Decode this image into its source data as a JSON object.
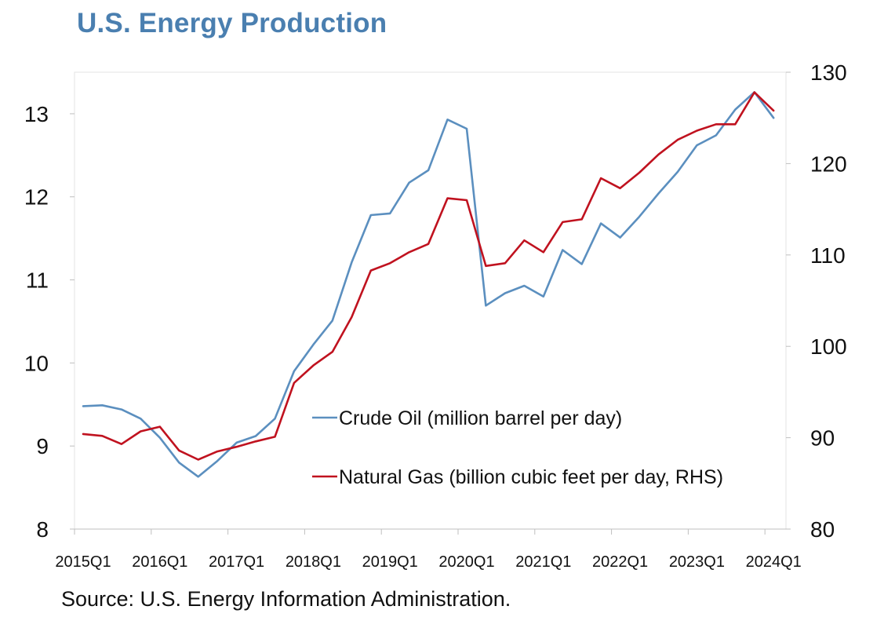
{
  "title": "U.S. Energy Production",
  "source": "Source: U.S. Energy Information Administration.",
  "colors": {
    "title": "#4a7fb0",
    "crude": "#5b8fbf",
    "gas": "#c0121f"
  },
  "chart_data": {
    "type": "line",
    "title": "U.S. Energy Production",
    "x": [
      "2015Q1",
      "2015Q2",
      "2015Q3",
      "2015Q4",
      "2016Q1",
      "2016Q2",
      "2016Q3",
      "2016Q4",
      "2017Q1",
      "2017Q2",
      "2017Q3",
      "2017Q4",
      "2018Q1",
      "2018Q2",
      "2018Q3",
      "2018Q4",
      "2019Q1",
      "2019Q2",
      "2019Q3",
      "2019Q4",
      "2020Q1",
      "2020Q2",
      "2020Q3",
      "2020Q4",
      "2021Q1",
      "2021Q2",
      "2021Q3",
      "2021Q4",
      "2022Q1",
      "2022Q2",
      "2022Q3",
      "2022Q4",
      "2023Q1",
      "2023Q2",
      "2023Q3",
      "2023Q4",
      "2024Q1"
    ],
    "x_tick_labels": [
      "2015Q1",
      "2016Q1",
      "2017Q1",
      "2018Q1",
      "2019Q1",
      "2020Q1",
      "2021Q1",
      "2022Q1",
      "2023Q1",
      "2024Q1"
    ],
    "y_left": {
      "lim": [
        8,
        13.5
      ],
      "ticks": [
        8,
        9,
        10,
        11,
        12,
        13
      ]
    },
    "y_right": {
      "lim": [
        80,
        130
      ],
      "ticks": [
        80,
        90,
        100,
        110,
        120,
        130
      ]
    },
    "grid": false,
    "legend_position": "center-right",
    "series": [
      {
        "name": "Crude Oil (million barrel per day)",
        "axis": "left",
        "color": "#5b8fbf",
        "values": [
          9.48,
          9.49,
          9.44,
          9.33,
          9.1,
          8.8,
          8.63,
          8.82,
          9.04,
          9.12,
          9.33,
          9.9,
          10.22,
          10.51,
          11.21,
          11.78,
          11.8,
          12.17,
          12.32,
          12.93,
          12.82,
          10.69,
          10.84,
          10.93,
          10.8,
          11.36,
          11.19,
          11.68,
          11.51,
          11.76,
          12.04,
          12.3,
          12.62,
          12.74,
          13.05,
          13.26,
          12.95
        ]
      },
      {
        "name": "Natural Gas (billion cubic feet per day, RHS)",
        "axis": "right",
        "color": "#c0121f",
        "values": [
          90.4,
          90.2,
          89.3,
          90.7,
          91.2,
          88.6,
          87.6,
          88.5,
          89.0,
          89.6,
          90.1,
          96.0,
          97.9,
          99.4,
          103.2,
          108.3,
          109.1,
          110.3,
          111.2,
          116.2,
          116.0,
          108.8,
          109.1,
          111.6,
          110.3,
          113.6,
          113.9,
          118.4,
          117.3,
          119.0,
          121.0,
          122.6,
          123.6,
          124.3,
          124.3,
          127.8,
          125.8
        ]
      }
    ]
  }
}
